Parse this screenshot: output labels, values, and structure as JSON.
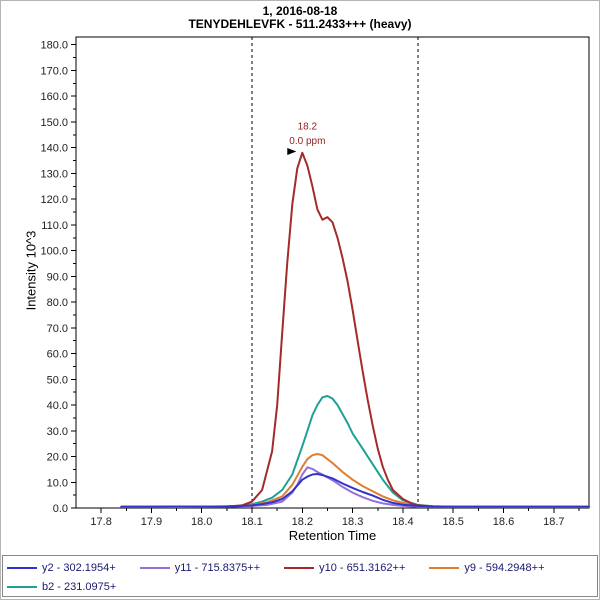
{
  "title": {
    "line1": "1, 2016-08-18",
    "line2": "TENYDEHLEVFK - 511.2433+++ (heavy)"
  },
  "colors": {
    "annotation": "#8B2323",
    "legend_text": "#191970",
    "axis_text": "#222222",
    "boundary_line": "#000000"
  },
  "chart_data": {
    "type": "line",
    "title": "1, 2016-08-18",
    "subtitle": "TENYDEHLEVFK - 511.2433+++ (heavy)",
    "xlabel": "Retention Time",
    "ylabel": "Intensity 10^3",
    "xlim": [
      17.75,
      18.77
    ],
    "ylim": [
      0,
      183
    ],
    "grid": false,
    "legend_position": "bottom",
    "x_ticks": [
      17.8,
      17.9,
      18.0,
      18.1,
      18.2,
      18.3,
      18.4,
      18.5,
      18.6,
      18.7
    ],
    "y_ticks": [
      0,
      10,
      20,
      30,
      40,
      50,
      60,
      70,
      80,
      90,
      100,
      110,
      120,
      130,
      140,
      150,
      160,
      170,
      180
    ],
    "peak_boundaries": [
      18.1,
      18.43
    ],
    "annotation": {
      "rt_label": "18.2",
      "ppm_label": "0.0 ppm",
      "x": 18.21,
      "y_rt": 147,
      "y_ppm": 141.5,
      "arrow": {
        "x": 18.188,
        "y": 138.5
      }
    },
    "draw_order": [
      4,
      3,
      2,
      1,
      0
    ],
    "legend_rows": [
      [
        0,
        1,
        2,
        3
      ],
      [
        4
      ]
    ],
    "series": [
      {
        "key": "y2",
        "name": "y2 - 302.1954+",
        "color": "#3333CC",
        "points": [
          [
            17.84,
            0.5
          ],
          [
            17.9,
            0.5
          ],
          [
            17.95,
            0.6
          ],
          [
            18.0,
            0.5
          ],
          [
            18.05,
            0.6
          ],
          [
            18.08,
            0.8
          ],
          [
            18.1,
            1.0
          ],
          [
            18.12,
            1.5
          ],
          [
            18.14,
            2.2
          ],
          [
            18.16,
            3.5
          ],
          [
            18.18,
            6.5
          ],
          [
            18.2,
            11.0
          ],
          [
            18.21,
            12.2
          ],
          [
            18.22,
            13.0
          ],
          [
            18.23,
            13.2
          ],
          [
            18.24,
            12.8
          ],
          [
            18.26,
            11.5
          ],
          [
            18.28,
            9.5
          ],
          [
            18.3,
            7.8
          ],
          [
            18.32,
            6.2
          ],
          [
            18.34,
            4.8
          ],
          [
            18.36,
            3.2
          ],
          [
            18.38,
            2.0
          ],
          [
            18.4,
            1.3
          ],
          [
            18.43,
            0.8
          ],
          [
            18.46,
            0.6
          ],
          [
            18.5,
            0.5
          ],
          [
            18.55,
            0.5
          ],
          [
            18.6,
            0.5
          ],
          [
            18.65,
            0.5
          ],
          [
            18.7,
            0.5
          ],
          [
            18.77,
            0.5
          ]
        ]
      },
      {
        "key": "y11",
        "name": "y11 - 715.8375++",
        "color": "#9370DB",
        "points": [
          [
            17.84,
            0.4
          ],
          [
            17.95,
            0.4
          ],
          [
            18.05,
            0.5
          ],
          [
            18.1,
            0.8
          ],
          [
            18.13,
            1.2
          ],
          [
            18.16,
            2.5
          ],
          [
            18.18,
            6.0
          ],
          [
            18.19,
            9.0
          ],
          [
            18.2,
            13.0
          ],
          [
            18.21,
            15.8
          ],
          [
            18.22,
            15.2
          ],
          [
            18.23,
            14.0
          ],
          [
            18.24,
            13.0
          ],
          [
            18.26,
            10.8
          ],
          [
            18.28,
            8.2
          ],
          [
            18.3,
            6.0
          ],
          [
            18.32,
            4.2
          ],
          [
            18.34,
            2.8
          ],
          [
            18.36,
            1.8
          ],
          [
            18.38,
            1.2
          ],
          [
            18.4,
            0.8
          ],
          [
            18.43,
            0.5
          ],
          [
            18.5,
            0.4
          ],
          [
            18.6,
            0.4
          ],
          [
            18.7,
            0.4
          ],
          [
            18.77,
            0.4
          ]
        ]
      },
      {
        "key": "y10",
        "name": "y10 - 651.3162++",
        "color": "#A52A2A",
        "points": [
          [
            17.84,
            0.5
          ],
          [
            17.95,
            0.5
          ],
          [
            18.0,
            0.6
          ],
          [
            18.05,
            0.6
          ],
          [
            18.08,
            1.0
          ],
          [
            18.1,
            2.5
          ],
          [
            18.12,
            7.0
          ],
          [
            18.14,
            22.0
          ],
          [
            18.15,
            40.0
          ],
          [
            18.16,
            68.0
          ],
          [
            18.17,
            95.0
          ],
          [
            18.18,
            118.0
          ],
          [
            18.19,
            132.0
          ],
          [
            18.2,
            138.0
          ],
          [
            18.21,
            133.0
          ],
          [
            18.22,
            125.0
          ],
          [
            18.23,
            116.0
          ],
          [
            18.24,
            112.0
          ],
          [
            18.25,
            113.0
          ],
          [
            18.26,
            111.0
          ],
          [
            18.27,
            105.0
          ],
          [
            18.28,
            97.0
          ],
          [
            18.29,
            88.0
          ],
          [
            18.3,
            77.0
          ],
          [
            18.31,
            65.0
          ],
          [
            18.32,
            53.0
          ],
          [
            18.33,
            42.0
          ],
          [
            18.34,
            32.0
          ],
          [
            18.35,
            23.0
          ],
          [
            18.36,
            16.0
          ],
          [
            18.37,
            11.0
          ],
          [
            18.38,
            7.0
          ],
          [
            18.4,
            3.5
          ],
          [
            18.42,
            1.5
          ],
          [
            18.43,
            1.0
          ],
          [
            18.46,
            0.6
          ],
          [
            18.5,
            0.5
          ],
          [
            18.6,
            0.5
          ],
          [
            18.7,
            0.5
          ],
          [
            18.77,
            0.5
          ]
        ]
      },
      {
        "key": "y9",
        "name": "y9 - 594.2948++",
        "color": "#DF7E2E",
        "points": [
          [
            17.84,
            0.5
          ],
          [
            18.0,
            0.5
          ],
          [
            18.08,
            0.8
          ],
          [
            18.1,
            1.2
          ],
          [
            18.13,
            2.2
          ],
          [
            18.16,
            4.5
          ],
          [
            18.18,
            9.0
          ],
          [
            18.2,
            16.0
          ],
          [
            18.21,
            19.0
          ],
          [
            18.22,
            20.5
          ],
          [
            18.23,
            21.0
          ],
          [
            18.24,
            20.5
          ],
          [
            18.26,
            17.5
          ],
          [
            18.28,
            14.0
          ],
          [
            18.3,
            11.0
          ],
          [
            18.32,
            8.5
          ],
          [
            18.34,
            6.5
          ],
          [
            18.36,
            4.5
          ],
          [
            18.38,
            3.0
          ],
          [
            18.4,
            2.0
          ],
          [
            18.43,
            1.0
          ],
          [
            18.46,
            0.7
          ],
          [
            18.5,
            0.5
          ],
          [
            18.6,
            0.5
          ],
          [
            18.7,
            0.5
          ],
          [
            18.77,
            0.5
          ]
        ]
      },
      {
        "key": "b2",
        "name": "b2 - 231.0975+",
        "color": "#1FA095",
        "points": [
          [
            17.84,
            0.5
          ],
          [
            18.0,
            0.5
          ],
          [
            18.05,
            0.6
          ],
          [
            18.08,
            0.9
          ],
          [
            18.1,
            1.5
          ],
          [
            18.12,
            2.5
          ],
          [
            18.14,
            4.0
          ],
          [
            18.16,
            7.0
          ],
          [
            18.18,
            13.0
          ],
          [
            18.2,
            24.0
          ],
          [
            18.21,
            30.0
          ],
          [
            18.22,
            36.0
          ],
          [
            18.23,
            40.0
          ],
          [
            18.24,
            43.0
          ],
          [
            18.25,
            43.5
          ],
          [
            18.26,
            42.5
          ],
          [
            18.27,
            40.0
          ],
          [
            18.28,
            36.5
          ],
          [
            18.29,
            33.0
          ],
          [
            18.3,
            29.0
          ],
          [
            18.32,
            23.0
          ],
          [
            18.34,
            17.0
          ],
          [
            18.36,
            11.0
          ],
          [
            18.38,
            6.0
          ],
          [
            18.4,
            3.0
          ],
          [
            18.43,
            1.2
          ],
          [
            18.46,
            0.7
          ],
          [
            18.5,
            0.5
          ],
          [
            18.6,
            0.5
          ],
          [
            18.7,
            0.5
          ],
          [
            18.77,
            0.5
          ]
        ]
      }
    ]
  }
}
